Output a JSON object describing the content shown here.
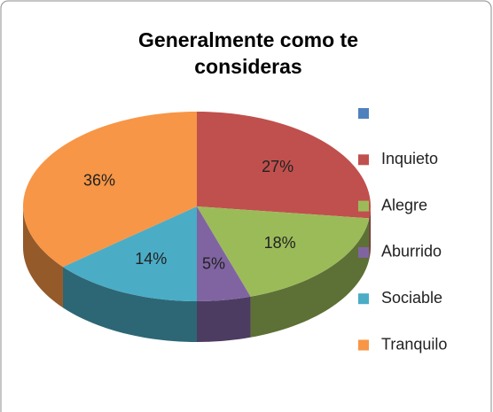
{
  "chart_data": {
    "type": "pie",
    "title": "Generalmente como te consideras",
    "categories": [
      null,
      "Inquieto",
      "Alegre",
      "Aburrido",
      "Sociable",
      "Tranquilo"
    ],
    "values": [
      0,
      27,
      18,
      5,
      14,
      36
    ],
    "value_labels": [
      null,
      "27%",
      "18%",
      "5%",
      "14%",
      "36%"
    ],
    "colors": [
      "#4f81bd",
      "#c0504d",
      "#9bbb59",
      "#8064a2",
      "#4bacc6",
      "#f79646"
    ],
    "legend": "right",
    "three_d": true
  }
}
